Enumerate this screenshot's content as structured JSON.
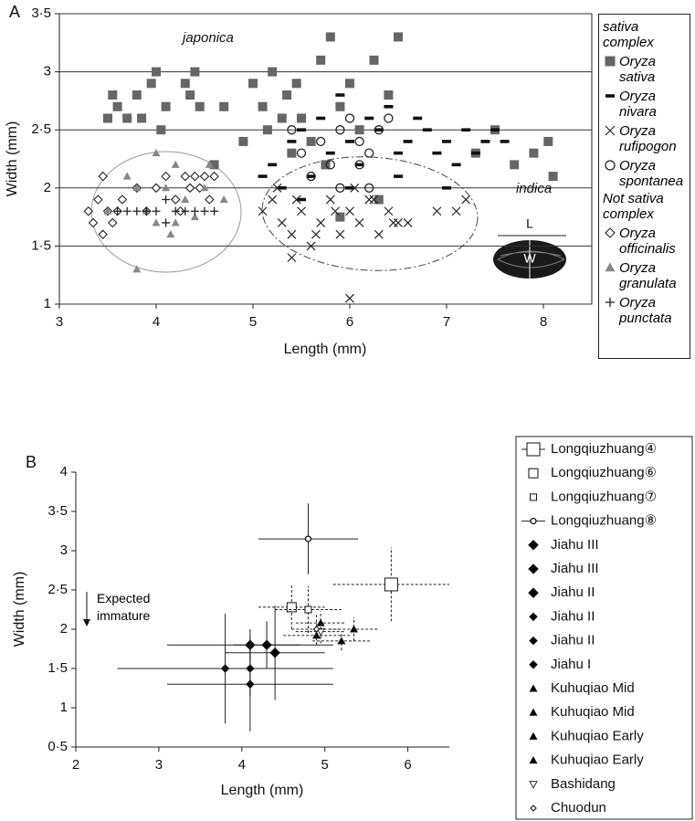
{
  "chart_data": [
    {
      "type": "scatter",
      "panel": "A",
      "x_label": "Length (mm)",
      "y_label": "Width (mm)",
      "xlim": [
        3,
        8.5
      ],
      "ylim": [
        1,
        3.5
      ],
      "xticks": [
        3,
        4,
        5,
        6,
        7,
        8
      ],
      "yticks": [
        1,
        {
          "value": 1.5,
          "label": "1·5"
        },
        2,
        {
          "value": 2.5,
          "label": "2·5"
        },
        3,
        {
          "value": 3.5,
          "label": "3·5"
        }
      ],
      "grid": true,
      "annotations": [
        "japonica",
        "indica",
        "L",
        "W"
      ],
      "legend_headings": [
        "sativa complex",
        "Not sativa complex"
      ],
      "series": [
        {
          "name": "Oryza sativa",
          "group": 0,
          "marker": "square",
          "color": "#666666",
          "x": [
            3.5,
            3.55,
            3.6,
            3.7,
            3.8,
            3.85,
            3.95,
            4.0,
            4.05,
            4.1,
            4.3,
            4.35,
            4.4,
            4.45,
            4.6,
            4.7,
            4.9,
            5.0,
            5.1,
            5.15,
            5.2,
            5.3,
            5.35,
            5.4,
            5.45,
            5.5,
            5.6,
            5.7,
            5.75,
            5.8,
            5.9,
            6.0,
            6.1,
            6.25,
            6.4,
            6.5,
            7.3,
            7.5,
            7.7,
            7.9,
            8.05,
            8.1,
            5.9,
            6.3
          ],
          "values": [
            2.6,
            2.8,
            2.7,
            2.6,
            2.8,
            2.6,
            2.9,
            3.0,
            2.5,
            2.7,
            2.9,
            2.8,
            3.0,
            2.7,
            2.2,
            2.7,
            2.4,
            2.9,
            2.7,
            2.5,
            3.0,
            2.6,
            2.8,
            2.3,
            2.9,
            2.6,
            2.4,
            3.1,
            2.2,
            3.3,
            2.7,
            2.9,
            2.5,
            3.1,
            2.8,
            3.3,
            2.3,
            2.5,
            2.2,
            2.3,
            2.4,
            2.1,
            1.75,
            1.9
          ]
        },
        {
          "name": "Oryza nivara",
          "group": 0,
          "marker": "dash",
          "color": "#111111",
          "x": [
            5.2,
            5.3,
            5.4,
            5.5,
            5.6,
            5.7,
            5.8,
            5.9,
            6.0,
            6.1,
            6.2,
            6.3,
            6.4,
            6.5,
            6.6,
            6.7,
            6.8,
            6.9,
            7.0,
            7.1,
            7.2,
            7.3,
            7.4,
            7.5,
            7.6,
            5.1,
            5.5,
            6.0,
            6.5,
            7.0
          ],
          "values": [
            2.2,
            2.0,
            2.4,
            2.5,
            2.1,
            2.6,
            2.3,
            2.8,
            2.4,
            2.2,
            2.6,
            2.5,
            2.7,
            2.3,
            2.4,
            2.6,
            2.5,
            2.3,
            2.4,
            2.2,
            2.5,
            2.3,
            2.4,
            2.5,
            2.4,
            2.1,
            1.9,
            2.0,
            2.1,
            2.0
          ]
        },
        {
          "name": "Oryza rufipogon",
          "group": 0,
          "marker": "x",
          "color": "#222222",
          "x": [
            5.1,
            5.2,
            5.3,
            5.4,
            5.5,
            5.6,
            5.7,
            5.8,
            5.9,
            6.0,
            6.1,
            6.2,
            6.3,
            6.4,
            6.5,
            6.6,
            6.9,
            7.1,
            7.2,
            5.25,
            5.45,
            5.65,
            5.85,
            6.05,
            6.25,
            6.45,
            5.4,
            6.0
          ],
          "values": [
            1.8,
            1.9,
            1.7,
            1.6,
            1.8,
            1.5,
            1.7,
            1.9,
            1.6,
            1.8,
            1.7,
            1.9,
            1.6,
            1.8,
            1.7,
            1.7,
            1.8,
            1.8,
            1.9,
            2.0,
            1.9,
            1.6,
            1.8,
            2.0,
            1.9,
            1.7,
            1.4,
            1.05
          ]
        },
        {
          "name": "Oryza spontanea",
          "group": 0,
          "marker": "circle",
          "color": "#222222",
          "x": [
            5.4,
            5.5,
            5.7,
            5.8,
            5.9,
            6.0,
            6.1,
            6.2,
            6.3,
            6.4,
            5.6,
            6.1,
            5.9,
            6.2
          ],
          "values": [
            2.5,
            2.3,
            2.4,
            2.2,
            2.5,
            2.6,
            2.4,
            2.3,
            2.5,
            2.6,
            2.1,
            2.2,
            2.0,
            2.0
          ]
        },
        {
          "name": "Oryza officinalis",
          "group": 1,
          "marker": "diamond",
          "color": "#222222",
          "x": [
            3.3,
            3.35,
            3.4,
            3.45,
            3.5,
            3.55,
            3.6,
            3.65,
            3.8,
            3.9,
            4.0,
            4.1,
            4.2,
            4.3,
            4.35,
            4.4,
            4.45,
            4.5,
            4.55,
            4.6,
            3.45,
            4.25
          ],
          "values": [
            1.8,
            1.7,
            1.9,
            2.1,
            1.8,
            1.7,
            1.8,
            1.9,
            2.0,
            1.8,
            2.0,
            2.1,
            1.9,
            2.1,
            2.0,
            2.1,
            2.0,
            2.1,
            1.9,
            2.1,
            1.6,
            1.8
          ]
        },
        {
          "name": "Oryza granulata",
          "group": 1,
          "marker": "triangle",
          "color": "#888888",
          "x": [
            3.5,
            3.7,
            3.8,
            3.9,
            4.0,
            4.0,
            4.1,
            4.15,
            4.2,
            4.3,
            4.4,
            4.5,
            4.55,
            4.7,
            3.8,
            4.2
          ],
          "values": [
            1.8,
            2.1,
            2.0,
            1.8,
            2.3,
            1.7,
            2.0,
            1.6,
            2.2,
            1.9,
            1.75,
            2.0,
            2.2,
            1.9,
            1.3,
            1.7
          ]
        },
        {
          "name": "Oryza punctata",
          "group": 1,
          "marker": "plus",
          "color": "#222222",
          "x": [
            3.6,
            3.7,
            3.8,
            3.9,
            4.0,
            4.1,
            4.2,
            4.3,
            4.4,
            4.5,
            4.6,
            4.1
          ],
          "values": [
            1.8,
            1.8,
            1.8,
            1.8,
            1.8,
            1.9,
            1.8,
            1.8,
            1.8,
            1.8,
            1.8,
            1.7
          ]
        }
      ]
    },
    {
      "type": "errorbar",
      "panel": "B",
      "x_label": "Length (mm)",
      "y_label": "Width (mm)",
      "xlim": [
        2,
        6.5
      ],
      "ylim": [
        0.5,
        4
      ],
      "xticks": [
        2,
        3,
        4,
        5,
        6
      ],
      "yticks": [
        {
          "value": 0.5,
          "label": "0·5"
        },
        1,
        {
          "value": 1.5,
          "label": "1·5"
        },
        2,
        {
          "value": 2.5,
          "label": "2·5"
        },
        3,
        {
          "value": 3.5,
          "label": "3·5"
        },
        4
      ],
      "grid": false,
      "annotation": "Expected immature",
      "series": [
        {
          "name": "Longqiuzhuang④",
          "marker": "square",
          "fill": "none",
          "size": 7,
          "dash": "dashed",
          "legend_line": true,
          "x": [
            5.8
          ],
          "values": [
            2.57
          ],
          "xerr": [
            0.7
          ],
          "yerr": [
            0.47
          ]
        },
        {
          "name": "Longqiuzhuang⑥",
          "marker": "square",
          "fill": "none",
          "size": 5,
          "dash": "dashed",
          "x": [
            4.6
          ],
          "values": [
            2.28
          ],
          "xerr": [
            0.4
          ],
          "yerr": [
            0.28
          ]
        },
        {
          "name": "Longqiuzhuang⑦",
          "marker": "square",
          "fill": "none",
          "size": 3.5,
          "dash": "dashed",
          "x": [
            4.8
          ],
          "values": [
            2.25
          ],
          "xerr": [
            0.4
          ],
          "yerr": [
            0.3
          ]
        },
        {
          "name": "Longqiuzhuang⑧",
          "marker": "circle",
          "fill": "none",
          "size": 3,
          "dash": "solid",
          "legend_line": true,
          "x": [
            4.8
          ],
          "values": [
            3.15
          ],
          "xerr": [
            0.6
          ],
          "yerr": [
            0.45
          ]
        },
        {
          "name": "Jiahu III",
          "marker": "diamond",
          "fill": "#000000",
          "size": 5,
          "dash": "solid",
          "x": [
            4.1
          ],
          "values": [
            1.8
          ],
          "xerr": [
            1.0
          ],
          "yerr": [
            0.2
          ]
        },
        {
          "name": "Jiahu III",
          "marker": "diamond",
          "fill": "#000000",
          "size": 5,
          "dash": "solid",
          "x": [
            4.3
          ],
          "values": [
            1.8
          ],
          "xerr": [
            0.4
          ],
          "yerr": [
            0.3
          ]
        },
        {
          "name": "Jiahu II",
          "marker": "diamond",
          "fill": "#000000",
          "size": 5,
          "dash": "solid",
          "x": [
            4.4
          ],
          "values": [
            1.7
          ],
          "xerr": [
            0.6
          ],
          "yerr": [
            0.6
          ]
        },
        {
          "name": "Jiahu II",
          "marker": "diamond",
          "fill": "#000000",
          "size": 4,
          "dash": "solid",
          "x": [
            3.8
          ],
          "values": [
            1.5
          ],
          "xerr": [
            1.3
          ],
          "yerr": [
            0.7
          ]
        },
        {
          "name": "Jiahu II",
          "marker": "diamond",
          "fill": "#000000",
          "size": 4,
          "dash": "solid",
          "x": [
            4.1
          ],
          "values": [
            1.5
          ],
          "xerr": [
            0.6
          ],
          "yerr": [
            0.35
          ]
        },
        {
          "name": "Jiahu I",
          "marker": "diamond",
          "fill": "#000000",
          "size": 4,
          "dash": "solid",
          "x": [
            4.1
          ],
          "values": [
            1.3
          ],
          "xerr": [
            1.0
          ],
          "yerr": [
            0.6
          ]
        },
        {
          "name": "Kuhuqiao Mid",
          "marker": "triangle",
          "fill": "#000000",
          "size": 4,
          "dash": "dashed",
          "x": [
            5.35
          ],
          "values": [
            2.0
          ],
          "xerr": [
            0.3
          ],
          "yerr": [
            0.15
          ]
        },
        {
          "name": "Kuhuqiao Mid",
          "marker": "triangle",
          "fill": "#000000",
          "size": 4,
          "dash": "dashed",
          "x": [
            4.95
          ],
          "values": [
            2.08
          ],
          "xerr": [
            0.3
          ],
          "yerr": [
            0.15
          ]
        },
        {
          "name": "Kuhuqiao Early",
          "marker": "triangle",
          "fill": "#000000",
          "size": 4,
          "dash": "dashed",
          "x": [
            4.9
          ],
          "values": [
            1.92
          ],
          "xerr": [
            0.4
          ],
          "yerr": [
            0.12
          ]
        },
        {
          "name": "Kuhuqiao Early",
          "marker": "triangle",
          "fill": "#000000",
          "size": 4,
          "dash": "dashed",
          "x": [
            5.2
          ],
          "values": [
            1.85
          ],
          "xerr": [
            0.35
          ],
          "yerr": [
            0.12
          ]
        },
        {
          "name": "Bashidang",
          "marker": "triangle-down",
          "fill": "none",
          "size": 4,
          "dash": "dashed",
          "x": [
            4.95
          ],
          "values": [
            1.97
          ],
          "xerr": [
            0.3
          ],
          "yerr": [
            0.15
          ]
        },
        {
          "name": "Chuodun",
          "marker": "diamond",
          "fill": "none",
          "size": 3,
          "dash": "dashed",
          "x": [
            4.9
          ],
          "values": [
            2.0
          ],
          "xerr": [
            0.3
          ],
          "yerr": [
            0.2
          ]
        }
      ]
    }
  ]
}
